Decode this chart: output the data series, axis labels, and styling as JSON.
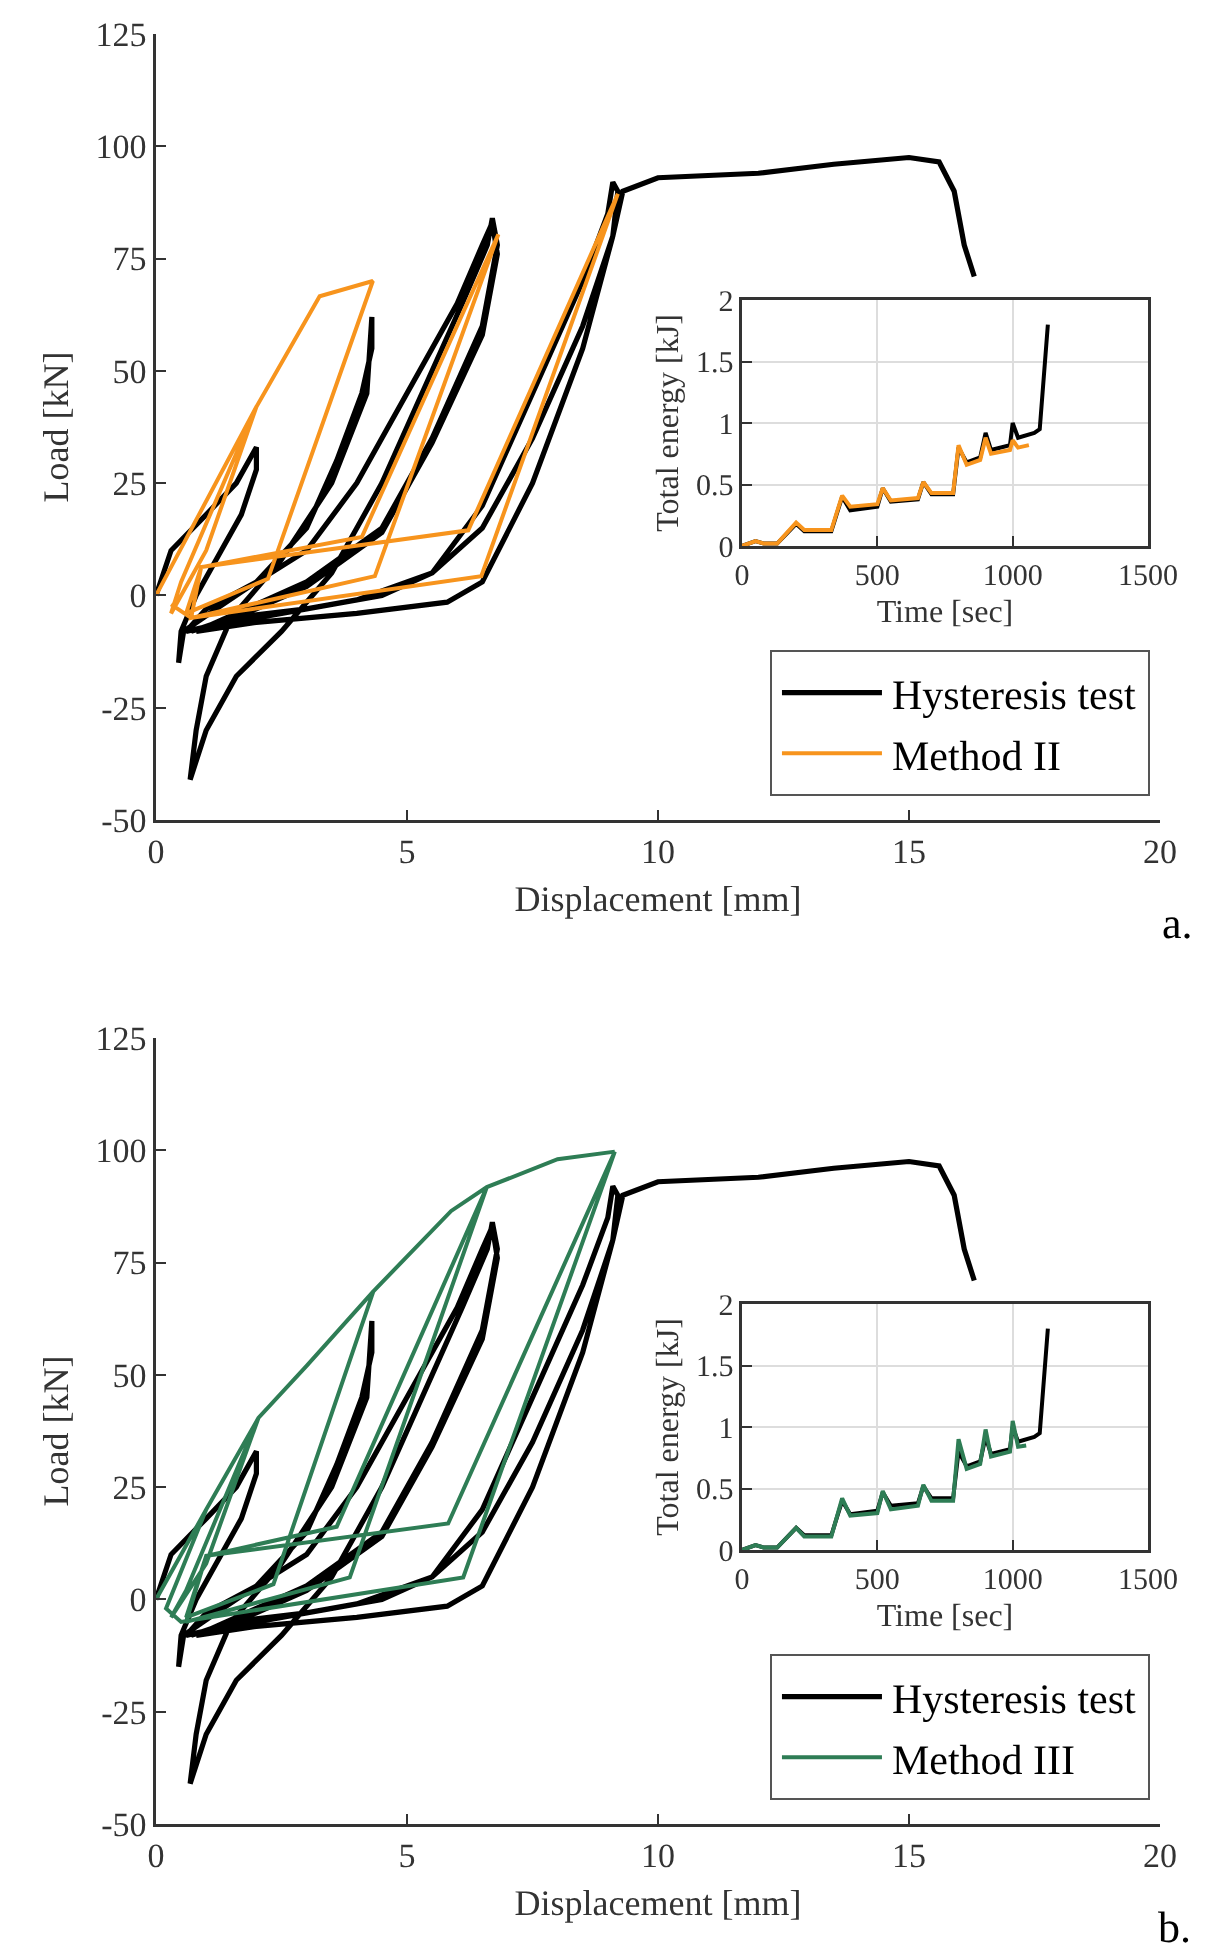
{
  "chart_data": [
    {
      "type": "line",
      "xlabel": "Displacement [mm]",
      "ylabel": "Load [kN]",
      "xlim": [
        0,
        20
      ],
      "xticks": [
        0,
        5,
        10,
        15,
        20
      ],
      "ylim": [
        -50,
        125
      ],
      "yticks": [
        -50,
        -25,
        0,
        25,
        50,
        75,
        100,
        125
      ],
      "grid": false,
      "legend": "bottom right",
      "annotations": [
        "a."
      ],
      "series": [
        {
          "name": "Hysteresis test",
          "color": "#000000",
          "x": [
            0,
            0.3,
            1,
            1.6,
            2.0,
            2.0,
            1.7,
            1.2,
            0.8,
            0.5,
            0.45,
            0.55,
            1.2,
            2,
            3,
            3.6,
            4.1,
            4.3,
            4.3,
            4.2,
            3.5,
            2.5,
            1.5,
            1,
            0.8,
            0.68,
            1,
            1.6,
            2.5,
            3.5,
            4.5,
            5.5,
            6.1,
            6.6,
            6.7,
            6.8,
            6.5,
            5.5,
            4.5,
            3,
            2,
            1,
            0.6,
            1,
            2,
            3,
            4,
            5,
            6,
            6.5,
            6.7,
            6.8,
            6.5,
            5.5,
            4.5,
            3,
            2,
            1,
            0.7,
            1.5,
            3,
            4.5,
            5.5,
            6.5,
            7.5,
            8.5,
            9.0,
            9.1,
            9.2,
            9.1,
            8.5,
            7.5,
            6.5,
            5.5,
            4,
            2,
            0.8,
            2,
            4,
            5.8,
            6.5,
            7.5,
            8.5,
            9.1,
            9.3,
            10,
            12,
            13.5,
            15,
            15.6,
            15.9,
            16.1,
            16.3
          ],
          "values": [
            0,
            10,
            18,
            25,
            33,
            28,
            18,
            8,
            0,
            -8,
            -15,
            -8,
            -3,
            3,
            15,
            30,
            45,
            55,
            62,
            45,
            25,
            8,
            -5,
            -18,
            -30,
            -41,
            -30,
            -18,
            -8,
            5,
            25,
            50,
            65,
            78,
            84,
            78,
            60,
            35,
            15,
            3,
            -2,
            -7,
            -8,
            -3,
            3,
            10,
            25,
            45,
            65,
            78,
            83,
            76,
            58,
            34,
            14,
            2,
            -3,
            -7,
            -8,
            -5,
            -3,
            0,
            5,
            20,
            45,
            70,
            85,
            92,
            90,
            80,
            60,
            35,
            15,
            5,
            -1,
            -5,
            -8,
            -6,
            -4,
            -1.5,
            3,
            25,
            55,
            80,
            90,
            93,
            94,
            96,
            97.5,
            96.5,
            90,
            78,
            71
          ]
        },
        {
          "name": "Method II",
          "color": "#f7941d",
          "x": [
            0,
            2.0,
            1.0,
            0.3,
            0.5,
            2.0,
            3.26,
            4.32,
            2.23,
            0.6,
            0.9,
            4.1,
            6.82,
            4.36,
            0.7,
            0.9,
            6.22,
            9.2,
            6.48,
            0.7,
            0.3
          ],
          "values": [
            0,
            42,
            10,
            -4,
            3,
            42,
            66.6,
            70,
            3.7,
            -4,
            6.3,
            13,
            80.4,
            4.3,
            -5,
            6.3,
            14.5,
            89.4,
            4.3,
            -5,
            -2
          ]
        }
      ]
    },
    {
      "type": "line",
      "xlabel": "Time [sec]",
      "ylabel": "Total energy [kJ]",
      "xlim": [
        0,
        1500
      ],
      "xticks": [
        0,
        500,
        1000,
        1500
      ],
      "ylim": [
        0,
        2
      ],
      "yticks": [
        0,
        0.5,
        1,
        1.5,
        2
      ],
      "grid": true,
      "legend": false,
      "series": [
        {
          "color": "#000000",
          "x": [
            0,
            50,
            80,
            130,
            200,
            230,
            330,
            370,
            400,
            500,
            520,
            550,
            650,
            670,
            700,
            780,
            800,
            830,
            880,
            900,
            920,
            990,
            1000,
            1020,
            1080,
            1100,
            1130
          ],
          "values": [
            0,
            0.04,
            0.02,
            0.02,
            0.18,
            0.12,
            0.12,
            0.4,
            0.29,
            0.32,
            0.47,
            0.36,
            0.38,
            0.52,
            0.42,
            0.42,
            0.8,
            0.68,
            0.72,
            0.92,
            0.78,
            0.82,
            1.0,
            0.88,
            0.92,
            0.95,
            1.8
          ]
        },
        {
          "color": "#f7941d",
          "x": [
            0,
            50,
            80,
            130,
            200,
            230,
            330,
            370,
            400,
            500,
            520,
            550,
            650,
            670,
            700,
            780,
            800,
            830,
            880,
            900,
            920,
            990,
            1000,
            1020,
            1060
          ],
          "values": [
            0,
            0.04,
            0.02,
            0.02,
            0.19,
            0.13,
            0.13,
            0.41,
            0.32,
            0.34,
            0.47,
            0.37,
            0.39,
            0.52,
            0.43,
            0.43,
            0.82,
            0.66,
            0.7,
            0.88,
            0.75,
            0.78,
            0.86,
            0.8,
            0.82
          ]
        }
      ]
    },
    {
      "type": "line",
      "xlabel": "Displacement [mm]",
      "ylabel": "Load [kN]",
      "xlim": [
        0,
        20
      ],
      "xticks": [
        0,
        5,
        10,
        15,
        20
      ],
      "ylim": [
        -50,
        125
      ],
      "yticks": [
        -50,
        -25,
        0,
        25,
        50,
        75,
        100,
        125
      ],
      "grid": false,
      "legend": "bottom right",
      "annotations": [
        "b."
      ],
      "series": [
        {
          "name": "Hysteresis test",
          "color": "#000000",
          "x": [
            0,
            0.3,
            1,
            1.6,
            2.0,
            2.0,
            1.7,
            1.2,
            0.8,
            0.5,
            0.45,
            0.55,
            1.2,
            2,
            3,
            3.6,
            4.1,
            4.3,
            4.3,
            4.2,
            3.5,
            2.5,
            1.5,
            1,
            0.8,
            0.68,
            1,
            1.6,
            2.5,
            3.5,
            4.5,
            5.5,
            6.1,
            6.6,
            6.7,
            6.8,
            6.5,
            5.5,
            4.5,
            3,
            2,
            1,
            0.6,
            1,
            2,
            3,
            4,
            5,
            6,
            6.5,
            6.7,
            6.8,
            6.5,
            5.5,
            4.5,
            3,
            2,
            1,
            0.7,
            1.5,
            3,
            4.5,
            5.5,
            6.5,
            7.5,
            8.5,
            9.0,
            9.1,
            9.2,
            9.1,
            8.5,
            7.5,
            6.5,
            5.5,
            4,
            2,
            0.8,
            2,
            4,
            5.8,
            6.5,
            7.5,
            8.5,
            9.1,
            9.3,
            10,
            12,
            13.5,
            15,
            15.6,
            15.9,
            16.1,
            16.3
          ],
          "values": [
            0,
            10,
            18,
            25,
            33,
            28,
            18,
            8,
            0,
            -8,
            -15,
            -8,
            -3,
            3,
            15,
            30,
            45,
            55,
            62,
            45,
            25,
            8,
            -5,
            -18,
            -30,
            -41,
            -30,
            -18,
            -8,
            5,
            25,
            50,
            65,
            78,
            84,
            78,
            60,
            35,
            15,
            3,
            -2,
            -7,
            -8,
            -3,
            3,
            10,
            25,
            45,
            65,
            78,
            83,
            76,
            58,
            34,
            14,
            2,
            -3,
            -7,
            -8,
            -5,
            -3,
            0,
            5,
            20,
            45,
            70,
            85,
            92,
            90,
            80,
            60,
            35,
            15,
            5,
            -1,
            -5,
            -8,
            -6,
            -4,
            -1.5,
            3,
            25,
            55,
            80,
            90,
            93,
            94,
            96,
            97.5,
            96.5,
            90,
            78,
            71
          ]
        },
        {
          "name": "Method III",
          "color": "#2e7d55",
          "x": [
            0,
            1.0,
            2.04,
            1.0,
            0.3,
            0.6,
            2.04,
            3.0,
            4.33,
            2.34,
            0.6,
            1.0,
            3.6,
            6.59,
            3.86,
            0.6,
            1.0,
            5.82,
            9.14,
            6.12,
            0.5,
            0.2,
            1.0,
            2.04,
            3.0,
            4.33,
            5.88,
            6.59,
            8,
            9.14
          ],
          "values": [
            0,
            20,
            40.4,
            8,
            -4,
            2,
            40.4,
            52,
            68.6,
            3.4,
            -4,
            9.7,
            16.2,
            91.8,
            4.9,
            -5,
            9.7,
            16.9,
            99.7,
            4.9,
            -5,
            -2,
            20,
            40.4,
            52,
            68.6,
            86.5,
            91.8,
            98,
            99.7
          ]
        }
      ]
    },
    {
      "type": "line",
      "xlabel": "Time [sec]",
      "ylabel": "Total energy [kJ]",
      "xlim": [
        0,
        1500
      ],
      "xticks": [
        0,
        500,
        1000,
        1500
      ],
      "ylim": [
        0,
        2
      ],
      "yticks": [
        0,
        0.5,
        1,
        1.5,
        2
      ],
      "grid": true,
      "legend": false,
      "series": [
        {
          "color": "#000000",
          "x": [
            0,
            50,
            80,
            130,
            200,
            230,
            330,
            370,
            400,
            500,
            520,
            550,
            650,
            670,
            700,
            780,
            800,
            830,
            880,
            900,
            920,
            990,
            1000,
            1020,
            1080,
            1100,
            1130
          ],
          "values": [
            0,
            0.04,
            0.02,
            0.02,
            0.18,
            0.12,
            0.12,
            0.4,
            0.29,
            0.32,
            0.47,
            0.36,
            0.38,
            0.52,
            0.42,
            0.42,
            0.8,
            0.68,
            0.72,
            0.92,
            0.78,
            0.82,
            1.0,
            0.88,
            0.92,
            0.95,
            1.8
          ]
        },
        {
          "color": "#2e7d55",
          "x": [
            0,
            50,
            80,
            130,
            200,
            230,
            330,
            370,
            400,
            500,
            520,
            550,
            650,
            670,
            700,
            780,
            800,
            830,
            880,
            900,
            920,
            990,
            1000,
            1020,
            1050
          ],
          "values": [
            0,
            0.04,
            0.02,
            0.02,
            0.18,
            0.11,
            0.11,
            0.42,
            0.28,
            0.3,
            0.48,
            0.33,
            0.36,
            0.53,
            0.4,
            0.4,
            0.9,
            0.66,
            0.7,
            0.98,
            0.76,
            0.8,
            1.05,
            0.84,
            0.85
          ]
        }
      ]
    }
  ]
}
